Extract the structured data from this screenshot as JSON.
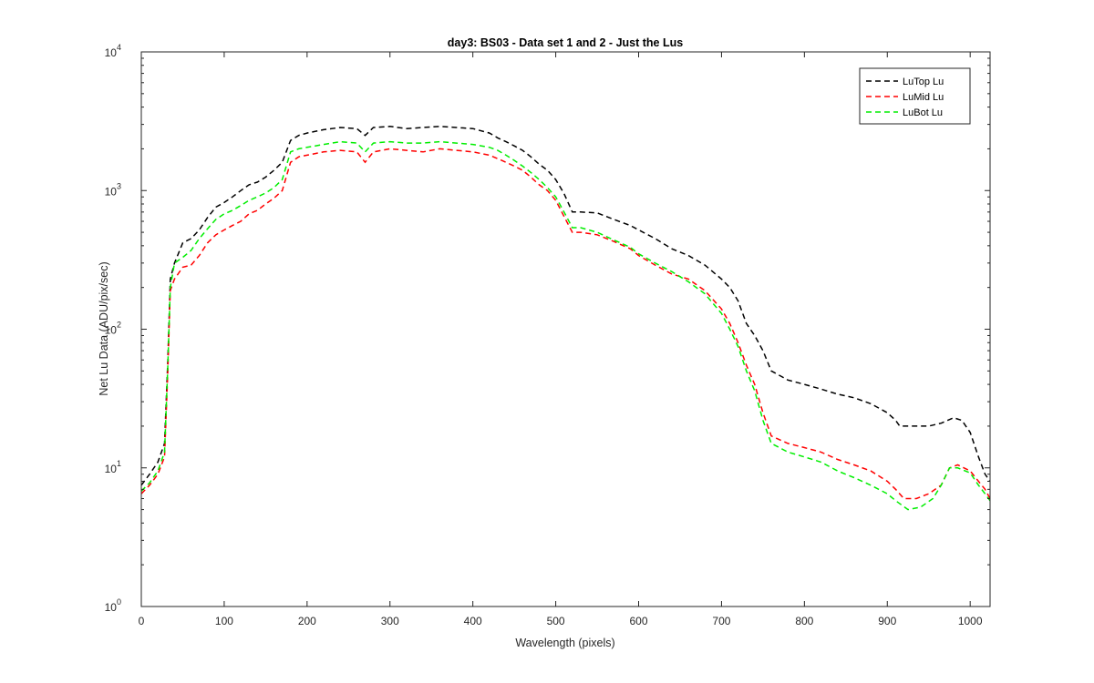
{
  "chart_data": {
    "type": "line",
    "title": "day3: BS03 - Data set 1 and 2 - Just the Lus",
    "xlabel": "Wavelength (pixels)",
    "ylabel": "Net Lu Data (ADU/pix/sec)",
    "xlim": [
      0,
      1024
    ],
    "ylim": [
      1,
      10000
    ],
    "yscale": "log",
    "grid": false,
    "legend_position": "top-right",
    "x_ticks": [
      "0",
      "100",
      "200",
      "300",
      "400",
      "500",
      "600",
      "700",
      "800",
      "900",
      "1000"
    ],
    "y_ticks": [
      {
        "base": "10",
        "exp": "0"
      },
      {
        "base": "10",
        "exp": "1"
      },
      {
        "base": "10",
        "exp": "2"
      },
      {
        "base": "10",
        "exp": "3"
      },
      {
        "base": "10",
        "exp": "4"
      }
    ],
    "series": [
      {
        "name": "LuTop  Lu",
        "color": "#000000",
        "points": [
          [
            0,
            7.5
          ],
          [
            10,
            9
          ],
          [
            20,
            11
          ],
          [
            28,
            15
          ],
          [
            32,
            60
          ],
          [
            35,
            230
          ],
          [
            40,
            300
          ],
          [
            50,
            420
          ],
          [
            60,
            450
          ],
          [
            70,
            520
          ],
          [
            80,
            640
          ],
          [
            90,
            760
          ],
          [
            100,
            820
          ],
          [
            110,
            900
          ],
          [
            120,
            1000
          ],
          [
            130,
            1100
          ],
          [
            140,
            1150
          ],
          [
            150,
            1250
          ],
          [
            160,
            1400
          ],
          [
            170,
            1600
          ],
          [
            180,
            2300
          ],
          [
            190,
            2500
          ],
          [
            200,
            2600
          ],
          [
            220,
            2750
          ],
          [
            240,
            2850
          ],
          [
            260,
            2800
          ],
          [
            270,
            2500
          ],
          [
            280,
            2850
          ],
          [
            300,
            2900
          ],
          [
            320,
            2800
          ],
          [
            340,
            2850
          ],
          [
            360,
            2900
          ],
          [
            380,
            2850
          ],
          [
            400,
            2800
          ],
          [
            420,
            2600
          ],
          [
            430,
            2400
          ],
          [
            440,
            2250
          ],
          [
            450,
            2100
          ],
          [
            460,
            1950
          ],
          [
            470,
            1750
          ],
          [
            480,
            1550
          ],
          [
            490,
            1400
          ],
          [
            500,
            1200
          ],
          [
            510,
            950
          ],
          [
            520,
            700
          ],
          [
            530,
            700
          ],
          [
            550,
            690
          ],
          [
            570,
            620
          ],
          [
            590,
            560
          ],
          [
            600,
            520
          ],
          [
            620,
            450
          ],
          [
            640,
            380
          ],
          [
            660,
            340
          ],
          [
            680,
            290
          ],
          [
            700,
            230
          ],
          [
            710,
            200
          ],
          [
            720,
            160
          ],
          [
            730,
            110
          ],
          [
            740,
            90
          ],
          [
            750,
            70
          ],
          [
            760,
            50
          ],
          [
            780,
            43
          ],
          [
            800,
            40
          ],
          [
            820,
            37
          ],
          [
            840,
            34
          ],
          [
            860,
            32
          ],
          [
            880,
            29
          ],
          [
            900,
            25
          ],
          [
            910,
            22
          ],
          [
            915,
            20
          ],
          [
            930,
            20
          ],
          [
            950,
            20
          ],
          [
            965,
            21
          ],
          [
            980,
            23
          ],
          [
            990,
            22
          ],
          [
            1000,
            18
          ],
          [
            1010,
            12
          ],
          [
            1018,
            9
          ],
          [
            1024,
            8
          ]
        ]
      },
      {
        "name": "LuMid  Lu",
        "color": "#ff0000",
        "points": [
          [
            0,
            6.5
          ],
          [
            10,
            7.5
          ],
          [
            20,
            9
          ],
          [
            28,
            12
          ],
          [
            32,
            50
          ],
          [
            35,
            190
          ],
          [
            40,
            230
          ],
          [
            50,
            280
          ],
          [
            60,
            290
          ],
          [
            70,
            340
          ],
          [
            80,
            420
          ],
          [
            90,
            480
          ],
          [
            100,
            520
          ],
          [
            110,
            560
          ],
          [
            120,
            600
          ],
          [
            130,
            680
          ],
          [
            140,
            720
          ],
          [
            150,
            800
          ],
          [
            160,
            880
          ],
          [
            170,
            1000
          ],
          [
            180,
            1600
          ],
          [
            190,
            1750
          ],
          [
            200,
            1800
          ],
          [
            220,
            1900
          ],
          [
            240,
            1950
          ],
          [
            260,
            1900
          ],
          [
            270,
            1600
          ],
          [
            280,
            1900
          ],
          [
            300,
            2000
          ],
          [
            320,
            1950
          ],
          [
            340,
            1900
          ],
          [
            360,
            2000
          ],
          [
            380,
            1950
          ],
          [
            400,
            1900
          ],
          [
            420,
            1800
          ],
          [
            430,
            1700
          ],
          [
            440,
            1600
          ],
          [
            450,
            1500
          ],
          [
            460,
            1400
          ],
          [
            470,
            1250
          ],
          [
            480,
            1100
          ],
          [
            490,
            1000
          ],
          [
            500,
            850
          ],
          [
            510,
            650
          ],
          [
            520,
            500
          ],
          [
            530,
            500
          ],
          [
            550,
            480
          ],
          [
            570,
            430
          ],
          [
            590,
            380
          ],
          [
            600,
            340
          ],
          [
            620,
            290
          ],
          [
            640,
            250
          ],
          [
            660,
            230
          ],
          [
            680,
            190
          ],
          [
            700,
            140
          ],
          [
            710,
            110
          ],
          [
            720,
            80
          ],
          [
            730,
            55
          ],
          [
            740,
            40
          ],
          [
            750,
            25
          ],
          [
            760,
            17
          ],
          [
            780,
            15
          ],
          [
            800,
            14
          ],
          [
            820,
            13
          ],
          [
            840,
            11.5
          ],
          [
            860,
            10.5
          ],
          [
            880,
            9.5
          ],
          [
            900,
            8
          ],
          [
            910,
            7
          ],
          [
            920,
            6
          ],
          [
            935,
            6
          ],
          [
            950,
            6.5
          ],
          [
            965,
            7.5
          ],
          [
            975,
            10
          ],
          [
            985,
            10.5
          ],
          [
            1000,
            9.5
          ],
          [
            1010,
            8
          ],
          [
            1018,
            7
          ],
          [
            1024,
            6
          ]
        ]
      },
      {
        "name": "LuBot  Lu",
        "color": "#00ee00",
        "points": [
          [
            0,
            6.8
          ],
          [
            10,
            7.8
          ],
          [
            20,
            9.5
          ],
          [
            28,
            13
          ],
          [
            32,
            55
          ],
          [
            35,
            200
          ],
          [
            40,
            300
          ],
          [
            50,
            330
          ],
          [
            60,
            370
          ],
          [
            70,
            450
          ],
          [
            80,
            530
          ],
          [
            90,
            620
          ],
          [
            100,
            680
          ],
          [
            110,
            720
          ],
          [
            120,
            780
          ],
          [
            130,
            850
          ],
          [
            140,
            900
          ],
          [
            150,
            960
          ],
          [
            160,
            1050
          ],
          [
            170,
            1200
          ],
          [
            180,
            1900
          ],
          [
            190,
            2000
          ],
          [
            200,
            2050
          ],
          [
            220,
            2150
          ],
          [
            240,
            2250
          ],
          [
            260,
            2200
          ],
          [
            270,
            1900
          ],
          [
            280,
            2200
          ],
          [
            300,
            2250
          ],
          [
            320,
            2200
          ],
          [
            340,
            2200
          ],
          [
            360,
            2250
          ],
          [
            380,
            2200
          ],
          [
            400,
            2150
          ],
          [
            420,
            2050
          ],
          [
            430,
            1950
          ],
          [
            440,
            1800
          ],
          [
            450,
            1650
          ],
          [
            460,
            1500
          ],
          [
            470,
            1350
          ],
          [
            480,
            1200
          ],
          [
            490,
            1050
          ],
          [
            500,
            900
          ],
          [
            510,
            700
          ],
          [
            520,
            540
          ],
          [
            530,
            540
          ],
          [
            550,
            500
          ],
          [
            570,
            440
          ],
          [
            590,
            390
          ],
          [
            600,
            350
          ],
          [
            620,
            300
          ],
          [
            640,
            260
          ],
          [
            660,
            220
          ],
          [
            680,
            180
          ],
          [
            700,
            130
          ],
          [
            710,
            100
          ],
          [
            720,
            75
          ],
          [
            730,
            50
          ],
          [
            740,
            36
          ],
          [
            750,
            22
          ],
          [
            760,
            15
          ],
          [
            780,
            13
          ],
          [
            800,
            12
          ],
          [
            820,
            11
          ],
          [
            840,
            9.5
          ],
          [
            860,
            8.5
          ],
          [
            880,
            7.5
          ],
          [
            900,
            6.5
          ],
          [
            910,
            5.8
          ],
          [
            925,
            5
          ],
          [
            940,
            5.2
          ],
          [
            955,
            6
          ],
          [
            965,
            7.5
          ],
          [
            975,
            10
          ],
          [
            985,
            10
          ],
          [
            1000,
            9.2
          ],
          [
            1010,
            7.5
          ],
          [
            1018,
            6.5
          ],
          [
            1024,
            5.8
          ]
        ]
      }
    ]
  }
}
